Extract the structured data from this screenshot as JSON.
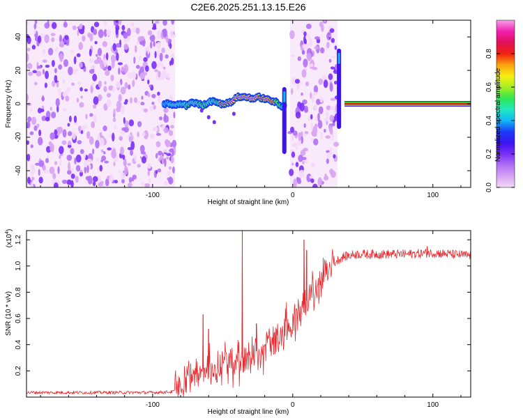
{
  "title": "C2E6.2025.251.13.15.E26",
  "colors": {
    "trace": "#e8262b",
    "colormap": [
      "#f3d9f8",
      "#d7a3f3",
      "#b070f5",
      "#7a2ff6",
      "#3c14f0",
      "#1a3cf8",
      "#10b8f6",
      "#20e8c0",
      "#30e850",
      "#a8ee20",
      "#f8ee10",
      "#f8a010",
      "#f02010",
      "#e0105a",
      "#f020b0",
      "#f8a0e8"
    ]
  },
  "chart_data": [
    {
      "type": "heatmap",
      "title": "C2E6.2025.251.13.15.E26",
      "xlabel": "Height of straight line (km)",
      "ylabel": "Frequency (Hz)",
      "xlim": [
        -190,
        127
      ],
      "ylim": [
        -50,
        50
      ],
      "xticks": [
        -100,
        0,
        100
      ],
      "xtick_labels": [
        "-100",
        "0",
        "100"
      ],
      "yticks": [
        -40,
        -20,
        0,
        20,
        40
      ],
      "ytick_labels": [
        "-40",
        "-20",
        "0",
        "20",
        "40"
      ],
      "colorbar": {
        "label": "Normalized spectral amplitude",
        "range": [
          0.0,
          1.0
        ],
        "ticks": [
          0.0,
          0.2,
          0.4,
          0.6,
          0.8
        ],
        "tick_labels": [
          "0.0",
          "0.2",
          "0.4",
          "0.6",
          "0.8"
        ]
      },
      "regions": [
        {
          "name": "noise-left",
          "x": [
            -190,
            -84
          ],
          "amplitude": 0.15
        },
        {
          "name": "noise-middle",
          "x": [
            -2,
            32
          ],
          "amplitude": 0.15
        }
      ],
      "ridge": {
        "x": [
          -92,
          -88,
          -84,
          -80,
          -76,
          -72,
          -68,
          -64,
          -60,
          -56,
          -52,
          -48,
          -44,
          -40,
          -36,
          -32,
          -28,
          -24,
          -20,
          -16,
          -12,
          -8,
          -5
        ],
        "freq": [
          0,
          0,
          -1,
          0,
          -1,
          1,
          0,
          -1,
          1,
          2,
          0,
          0,
          1,
          4,
          4,
          4,
          3,
          4,
          3,
          2,
          1,
          -2,
          0
        ],
        "amplitude": [
          0.45,
          0.55,
          0.6,
          0.55,
          0.65,
          0.6,
          0.7,
          0.65,
          0.6,
          0.7,
          0.8,
          0.85,
          0.9,
          0.95,
          0.95,
          0.95,
          0.9,
          0.85,
          0.9,
          0.8,
          0.7,
          0.6,
          0.5
        ]
      },
      "spikes": [
        {
          "x": -6,
          "freq_range": [
            -30,
            10
          ]
        },
        {
          "x": 33,
          "freq_range": [
            -15,
            33
          ]
        }
      ],
      "carrier": {
        "x": [
          37,
          127
        ],
        "freq": 0,
        "amplitude": 1.0
      }
    },
    {
      "type": "line",
      "title": "",
      "xlabel": "Height of straight line (km)",
      "ylabel": "SNR (10 * v/v)",
      "multiplier": "(x10",
      "multiplier_exp": "4",
      "xlim": [
        -190,
        127
      ],
      "ylim": [
        0,
        1.27
      ],
      "xticks": [
        -100,
        0,
        100
      ],
      "xtick_labels": [
        "-100",
        "0",
        "100"
      ],
      "yticks": [
        0.2,
        0.4,
        0.6,
        0.8,
        1.0,
        1.2
      ],
      "ytick_labels": [
        "0.2",
        "0.4",
        "0.6",
        "0.8",
        "1.0",
        "1.2"
      ],
      "baseline": [
        {
          "x": -190,
          "y": 0.035
        },
        {
          "x": -100,
          "y": 0.035
        },
        {
          "x": -86,
          "y": 0.04
        },
        {
          "x": -82,
          "y": 0.06
        },
        {
          "x": -78,
          "y": 0.12
        },
        {
          "x": -72,
          "y": 0.17
        },
        {
          "x": -66,
          "y": 0.21
        },
        {
          "x": -60,
          "y": 0.23
        },
        {
          "x": -54,
          "y": 0.24
        },
        {
          "x": -48,
          "y": 0.26
        },
        {
          "x": -42,
          "y": 0.28
        },
        {
          "x": -36,
          "y": 0.3
        },
        {
          "x": -30,
          "y": 0.33
        },
        {
          "x": -24,
          "y": 0.36
        },
        {
          "x": -18,
          "y": 0.4
        },
        {
          "x": -12,
          "y": 0.45
        },
        {
          "x": -6,
          "y": 0.51
        },
        {
          "x": 0,
          "y": 0.58
        },
        {
          "x": 6,
          "y": 0.67
        },
        {
          "x": 12,
          "y": 0.77
        },
        {
          "x": 18,
          "y": 0.87
        },
        {
          "x": 24,
          "y": 0.96
        },
        {
          "x": 30,
          "y": 1.03
        },
        {
          "x": 36,
          "y": 1.07
        },
        {
          "x": 45,
          "y": 1.09
        },
        {
          "x": 60,
          "y": 1.09
        },
        {
          "x": 80,
          "y": 1.09
        },
        {
          "x": 100,
          "y": 1.1
        },
        {
          "x": 127,
          "y": 1.08
        }
      ],
      "peaks": [
        {
          "x": -64,
          "y": 0.63
        },
        {
          "x": -60,
          "y": 0.52
        },
        {
          "x": -36,
          "y": 1.27
        },
        {
          "x": -26,
          "y": 0.56
        },
        {
          "x": 8,
          "y": 1.2
        },
        {
          "x": 10,
          "y": 1.12
        },
        {
          "x": 96,
          "y": 1.15
        }
      ]
    }
  ]
}
